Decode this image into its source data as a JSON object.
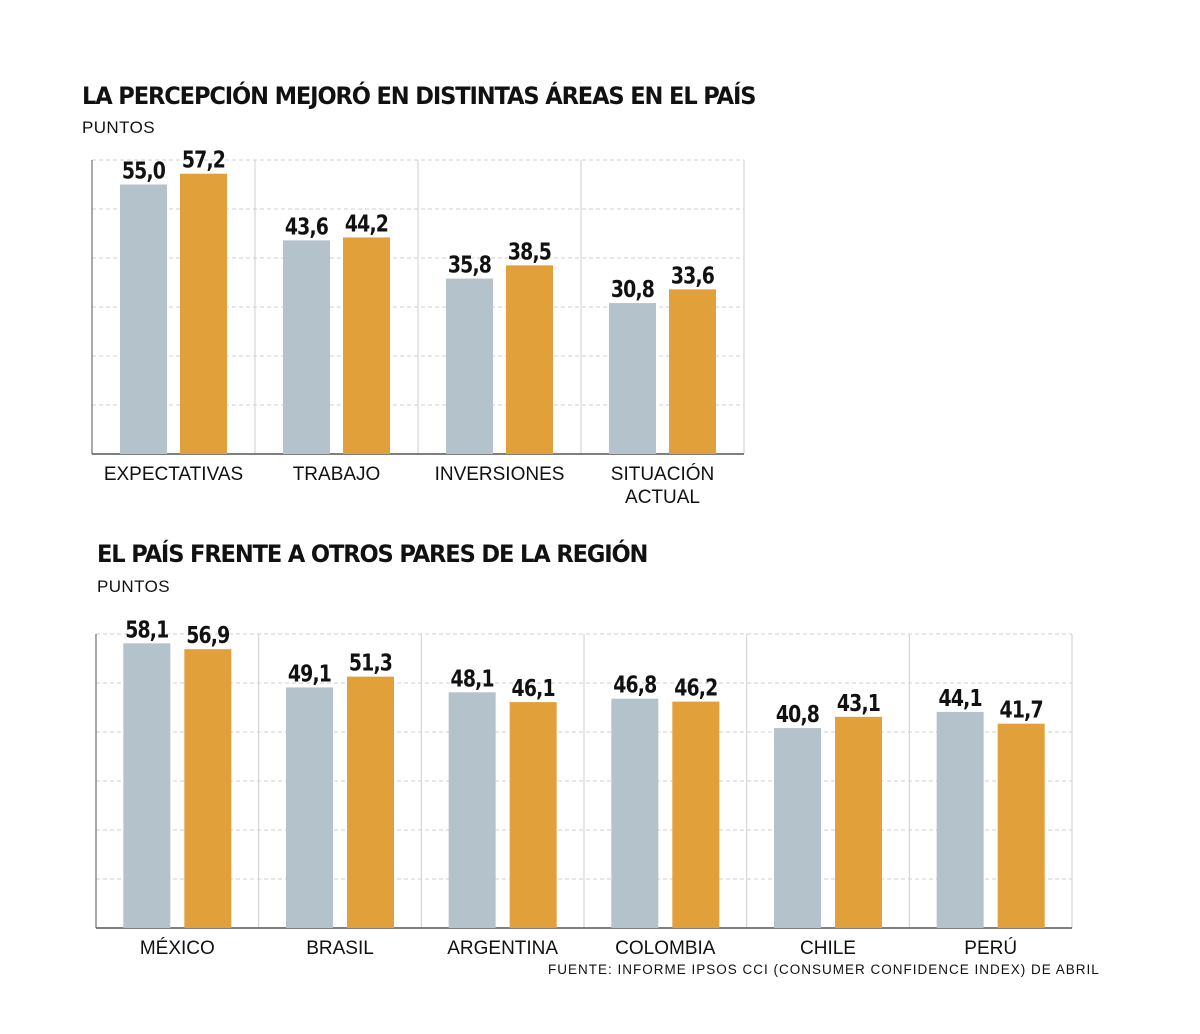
{
  "colors": {
    "series_a": "#b4c2cb",
    "series_b": "#e1a03a",
    "grid": "#cfcfcf",
    "axis": "#555555"
  },
  "chart1": {
    "title": "LA PERCEPCIÓN MEJORÓ EN DISTINTAS ÁREAS EN EL PAÍS",
    "unit": "PUNTOS"
  },
  "chart2": {
    "title": "EL PAÍS FRENTE A OTROS PARES DE LA REGIÓN",
    "unit": "PUNTOS"
  },
  "source": "FUENTE: INFORME IPSOS CCI (CONSUMER CONFIDENCE INDEX) DE ABRIL",
  "chart_data": [
    {
      "type": "bar",
      "title": "LA PERCEPCIÓN MEJORÓ EN DISTINTAS ÁREAS EN EL PAÍS",
      "ylabel": "PUNTOS",
      "categories": [
        [
          "EXPECTATIVAS"
        ],
        [
          "TRABAJO"
        ],
        [
          "INVERSIONES"
        ],
        [
          "SITUACIÓN",
          "ACTUAL"
        ]
      ],
      "series": [
        {
          "values": [
            55.0,
            43.6,
            35.8,
            30.8
          ],
          "labels": [
            "55,0",
            "43,6",
            "35,8",
            "30,8"
          ]
        },
        {
          "values": [
            57.2,
            44.2,
            38.5,
            33.6
          ],
          "labels": [
            "57,2",
            "44,2",
            "38,5",
            "33,6"
          ]
        }
      ],
      "ylim": [
        0,
        60
      ],
      "grid": true
    },
    {
      "type": "bar",
      "title": "EL PAÍS FRENTE A OTROS PARES DE LA REGIÓN",
      "ylabel": "PUNTOS",
      "categories": [
        [
          "MÉXICO"
        ],
        [
          "BRASIL"
        ],
        [
          "ARGENTINA"
        ],
        [
          "COLOMBIA"
        ],
        [
          "CHILE"
        ],
        [
          "PERÚ"
        ]
      ],
      "series": [
        {
          "values": [
            58.1,
            49.1,
            48.1,
            46.8,
            40.8,
            44.1
          ],
          "labels": [
            "58,1",
            "49,1",
            "48,1",
            "46,8",
            "40,8",
            "44,1"
          ]
        },
        {
          "values": [
            56.9,
            51.3,
            46.1,
            46.2,
            43.1,
            41.7
          ],
          "labels": [
            "56,9",
            "51,3",
            "46,1",
            "46,2",
            "43,1",
            "41,7"
          ]
        }
      ],
      "ylim": [
        0,
        60
      ],
      "grid": true
    }
  ]
}
